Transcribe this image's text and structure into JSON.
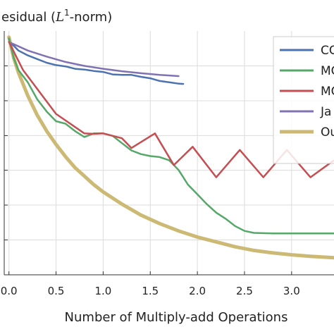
{
  "chart_data": {
    "type": "line",
    "title": "esidual (L1-norm)",
    "title_parts": {
      "pre": "esidual (",
      "L": "L",
      "sup": "1",
      "post": "-norm)"
    },
    "xlabel": "Number of Multiply-add Operations",
    "ylabel": "",
    "xlim": [
      -0.05,
      3.45
    ],
    "ylim": [
      0,
      1
    ],
    "x_ticks": [
      0.0,
      0.5,
      1.0,
      1.5,
      2.0,
      2.5,
      3.0
    ],
    "x_tick_labels": [
      "0.0",
      "0.5",
      "1.0",
      "1.5",
      "2.0",
      "2.5",
      "3.0"
    ],
    "y_ticks": [
      0.143,
      0.286,
      0.429,
      0.571,
      0.714,
      0.857
    ],
    "grid": true,
    "legend_position": "top-right",
    "series": [
      {
        "name": "CG",
        "color": "#4c72b0",
        "x": [
          0.0,
          0.05,
          0.1,
          0.2,
          0.3,
          0.4,
          0.5,
          0.6,
          0.7,
          0.8,
          0.9,
          1.0,
          1.1,
          1.2,
          1.3,
          1.4,
          1.5,
          1.6,
          1.7,
          1.8,
          1.85
        ],
        "y": [
          0.955,
          0.94,
          0.92,
          0.9,
          0.885,
          0.87,
          0.86,
          0.855,
          0.845,
          0.842,
          0.836,
          0.832,
          0.822,
          0.82,
          0.82,
          0.812,
          0.806,
          0.795,
          0.79,
          0.784,
          0.783
        ]
      },
      {
        "name": "MG",
        "color": "#55a868",
        "x": [
          0.0,
          0.05,
          0.1,
          0.2,
          0.3,
          0.4,
          0.5,
          0.6,
          0.7,
          0.8,
          0.9,
          1.0,
          1.1,
          1.2,
          1.3,
          1.4,
          1.5,
          1.6,
          1.7,
          1.8,
          1.85,
          1.9,
          2.0,
          2.1,
          2.2,
          2.3,
          2.4,
          2.5,
          2.6,
          2.8,
          3.0,
          3.2,
          3.45
        ],
        "y": [
          0.97,
          0.89,
          0.84,
          0.79,
          0.72,
          0.67,
          0.63,
          0.62,
          0.59,
          0.565,
          0.58,
          0.58,
          0.57,
          0.54,
          0.51,
          0.495,
          0.487,
          0.483,
          0.47,
          0.43,
          0.4,
          0.37,
          0.33,
          0.29,
          0.255,
          0.23,
          0.2,
          0.18,
          0.172,
          0.17,
          0.17,
          0.17,
          0.17
        ]
      },
      {
        "name": "MG",
        "color": "#c44e52",
        "x": [
          0.0,
          0.15,
          0.5,
          0.8,
          0.9,
          1.0,
          1.2,
          1.3,
          1.55,
          1.75,
          1.95,
          2.2,
          2.45,
          2.7,
          2.95,
          3.2,
          3.45
        ],
        "y": [
          0.955,
          0.84,
          0.66,
          0.58,
          0.578,
          0.58,
          0.56,
          0.52,
          0.58,
          0.45,
          0.525,
          0.4,
          0.512,
          0.4,
          0.512,
          0.4,
          0.47
        ]
      },
      {
        "name": "Ja",
        "color": "#8172b2",
        "x": [
          0.0,
          0.2,
          0.4,
          0.6,
          0.8,
          1.0,
          1.2,
          1.4,
          1.6,
          1.8
        ],
        "y": [
          0.955,
          0.92,
          0.895,
          0.873,
          0.857,
          0.845,
          0.835,
          0.827,
          0.82,
          0.815
        ]
      },
      {
        "name": "Ou",
        "color": "#ccb974",
        "x": [
          0.0,
          0.05,
          0.1,
          0.2,
          0.3,
          0.4,
          0.5,
          0.6,
          0.7,
          0.8,
          0.9,
          1.0,
          1.2,
          1.4,
          1.6,
          1.8,
          2.0,
          2.2,
          2.4,
          2.6,
          2.8,
          3.0,
          3.2,
          3.45
        ],
        "y": [
          0.975,
          0.89,
          0.83,
          0.735,
          0.655,
          0.59,
          0.535,
          0.485,
          0.44,
          0.405,
          0.37,
          0.34,
          0.29,
          0.245,
          0.21,
          0.18,
          0.155,
          0.135,
          0.115,
          0.1,
          0.09,
          0.082,
          0.076,
          0.07
        ]
      }
    ]
  }
}
